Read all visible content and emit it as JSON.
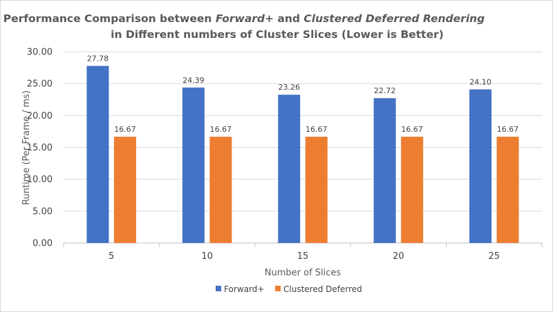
{
  "chart_data": {
    "type": "bar",
    "title": {
      "line1_prefix": "Performance Comparison between ",
      "line1_italic_a": "Forward+",
      "line1_mid": " and ",
      "line1_italic_b": "Clustered Deferred Rendering",
      "line2": "in Different numbers of Cluster Slices (Lower is Better)"
    },
    "xlabel": "Number of Slices",
    "ylabel": "Runtime (Per Frame / ms)",
    "categories": [
      "5",
      "10",
      "15",
      "20",
      "25"
    ],
    "series": [
      {
        "name": "Forward+",
        "color": "#4472C4",
        "values": [
          27.78,
          24.39,
          23.26,
          22.72,
          24.1
        ]
      },
      {
        "name": "Clustered Deferred",
        "color": "#ED7D31",
        "values": [
          16.67,
          16.67,
          16.67,
          16.67,
          16.67
        ]
      }
    ],
    "ylim": [
      0,
      30
    ],
    "yticks": [
      "0.00",
      "5.00",
      "10.00",
      "15.00",
      "20.00",
      "25.00",
      "30.00"
    ],
    "grid": true,
    "legend_position": "bottom",
    "value_labels": true
  }
}
